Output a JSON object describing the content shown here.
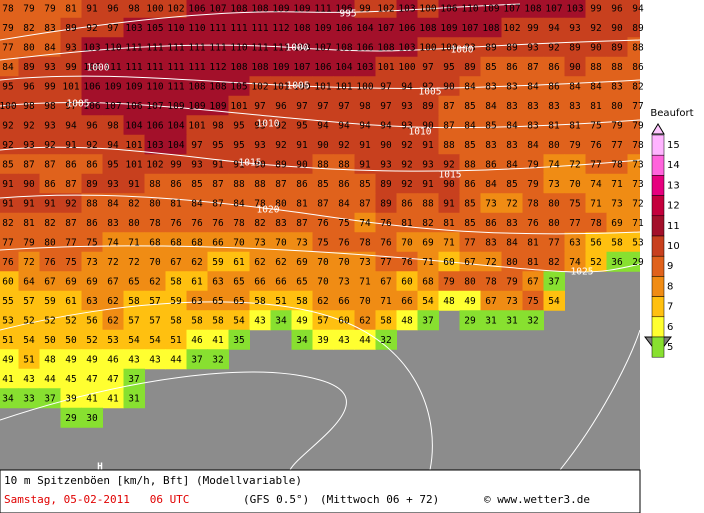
{
  "map": {
    "rows": [
      [
        78,
        79,
        79,
        81,
        91,
        96,
        98,
        100,
        102,
        106,
        107,
        108,
        108,
        109,
        109,
        111,
        106,
        99,
        102,
        103,
        100,
        106,
        110,
        109,
        107,
        108,
        107,
        103,
        99,
        96,
        94
      ],
      [
        79,
        82,
        83,
        89,
        92,
        97,
        103,
        105,
        110,
        110,
        111,
        111,
        111,
        112,
        108,
        109,
        106,
        104,
        107,
        106,
        108,
        109,
        107,
        108,
        102,
        99,
        94,
        93,
        92,
        90,
        89
      ],
      [
        77,
        80,
        84,
        93,
        103,
        110,
        111,
        111,
        111,
        111,
        111,
        110,
        111,
        111,
        108,
        107,
        108,
        106,
        108,
        103,
        100,
        100,
        93,
        89,
        89,
        93,
        92,
        89,
        90,
        89,
        88
      ],
      [
        84,
        89,
        93,
        99,
        106,
        111,
        111,
        111,
        111,
        111,
        112,
        108,
        108,
        109,
        107,
        106,
        104,
        103,
        101,
        100,
        97,
        95,
        89,
        85,
        86,
        87,
        86,
        90,
        88,
        88,
        86
      ],
      [
        95,
        96,
        99,
        101,
        106,
        109,
        109,
        110,
        111,
        108,
        108,
        105,
        102,
        101,
        100,
        101,
        101,
        100,
        97,
        94,
        92,
        90,
        84,
        83,
        83,
        84,
        86,
        84,
        84,
        83,
        82
      ],
      [
        100,
        98,
        98,
        97,
        106,
        107,
        106,
        107,
        109,
        109,
        109,
        101,
        97,
        96,
        97,
        97,
        97,
        98,
        97,
        93,
        89,
        87,
        85,
        84,
        83,
        83,
        83,
        83,
        81,
        80,
        77
      ],
      [
        92,
        92,
        93,
        94,
        96,
        98,
        104,
        106,
        104,
        101,
        98,
        95,
        93,
        92,
        95,
        94,
        94,
        94,
        94,
        93,
        90,
        87,
        84,
        85,
        84,
        83,
        81,
        81,
        75,
        79,
        79
      ],
      [
        92,
        93,
        92,
        91,
        92,
        94,
        101,
        103,
        104,
        97,
        95,
        95,
        93,
        92,
        91,
        90,
        92,
        91,
        90,
        92,
        91,
        88,
        85,
        83,
        83,
        84,
        80,
        79,
        76,
        77,
        78
      ],
      [
        85,
        87,
        87,
        86,
        86,
        95,
        101,
        102,
        99,
        93,
        91,
        91,
        90,
        89,
        90,
        88,
        88,
        91,
        93,
        92,
        93,
        92,
        88,
        86,
        84,
        79,
        74,
        72,
        77,
        78,
        73
      ],
      [
        91,
        90,
        86,
        87,
        89,
        93,
        91,
        88,
        86,
        85,
        87,
        88,
        88,
        87,
        86,
        85,
        86,
        85,
        89,
        92,
        91,
        90,
        86,
        84,
        85,
        79,
        73,
        70,
        74,
        71,
        73
      ],
      [
        91,
        91,
        91,
        92,
        88,
        84,
        82,
        80,
        81,
        84,
        87,
        84,
        78,
        80,
        81,
        87,
        84,
        87,
        89,
        86,
        88,
        91,
        85,
        73,
        72,
        78,
        80,
        75,
        71,
        73,
        72
      ],
      [
        82,
        81,
        82,
        87,
        86,
        83,
        80,
        78,
        76,
        76,
        76,
        78,
        82,
        83,
        87,
        76,
        75,
        74,
        76,
        81,
        82,
        81,
        85,
        86,
        83,
        76,
        80,
        77,
        78,
        69,
        71
      ],
      [
        77,
        79,
        80,
        77,
        75,
        74,
        71,
        68,
        68,
        68,
        66,
        70,
        73,
        70,
        73,
        75,
        76,
        78,
        76,
        70,
        69,
        71,
        77,
        83,
        84,
        81,
        77,
        63,
        56,
        58,
        53
      ],
      [
        76,
        72,
        76,
        75,
        73,
        72,
        72,
        70,
        67,
        62,
        59,
        61,
        62,
        62,
        69,
        70,
        70,
        73,
        77,
        76,
        71,
        60,
        67,
        72,
        80,
        81,
        82,
        74,
        52,
        36,
        29
      ],
      [
        60,
        64,
        67,
        69,
        69,
        67,
        65,
        62,
        58,
        61,
        63,
        65,
        66,
        66,
        65,
        70,
        73,
        71,
        67,
        60,
        68,
        79,
        80,
        78,
        79,
        67,
        37
      ],
      [
        55,
        57,
        59,
        61,
        63,
        62,
        58,
        57,
        59,
        63,
        65,
        65,
        58,
        51,
        58,
        62,
        66,
        70,
        71,
        66,
        54,
        48,
        49,
        67,
        73,
        75,
        54
      ],
      [
        53,
        52,
        52,
        52,
        56,
        62,
        57,
        57,
        58,
        58,
        58,
        54,
        43,
        34,
        49,
        57,
        60,
        62,
        58,
        48,
        37,
        null,
        29,
        31,
        31,
        32
      ],
      [
        51,
        54,
        50,
        50,
        52,
        53,
        54,
        54,
        51,
        46,
        41,
        35,
        null,
        null,
        34,
        39,
        43,
        44,
        32
      ],
      [
        49,
        51,
        48,
        49,
        49,
        46,
        43,
        43,
        44,
        37,
        32
      ],
      [
        41,
        43,
        44,
        45,
        47,
        47,
        37
      ],
      [
        34,
        33,
        37,
        39,
        41,
        41,
        31
      ],
      [
        null,
        null,
        null,
        29,
        30
      ]
    ],
    "isobar_labels": [
      "995",
      "1000",
      "1000",
      "1000",
      "1005",
      "1005",
      "1005",
      "1010",
      "1010",
      "1015",
      "1015",
      "1020",
      "1025"
    ],
    "high_label": "H"
  },
  "legend": {
    "title": "Beaufort",
    "levels": [
      15,
      14,
      13,
      12,
      11,
      10,
      9,
      8,
      7,
      6,
      5
    ]
  },
  "footer": {
    "line1": "10 m Spitzenböen [km/h, Bft] (Modellvariable)",
    "date": "Samstag, 05-02-2011   06 UTC",
    "model": "(GFS 0.5°)",
    "run": "(Mittwoch 06 + 72)",
    "credit": "© www.wetter3.de"
  }
}
